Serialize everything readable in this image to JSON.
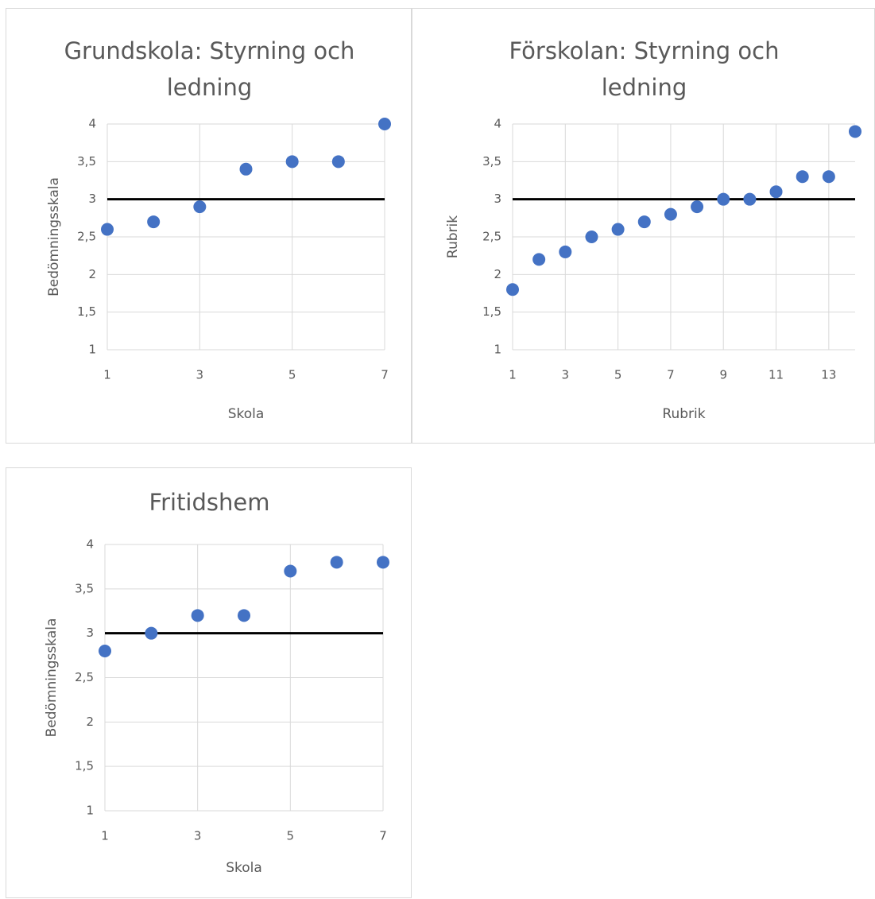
{
  "chart_data": [
    {
      "type": "scatter",
      "title_lines": [
        "Grundskola: Styrning och",
        "ledning"
      ],
      "xlabel": "Skola",
      "ylabel": "Bedömningsskala",
      "xlim": [
        1,
        7
      ],
      "ylim": [
        1,
        4
      ],
      "x_ticks": [
        "1",
        "3",
        "5",
        "7"
      ],
      "y_ticks": [
        "1",
        "1,5",
        "2",
        "2,5",
        "3",
        "3,5",
        "4"
      ],
      "reference_line_y": 3,
      "grid": true,
      "marker_color": "#4472C4",
      "reference_line_color": "#000000",
      "points": [
        {
          "x": 1,
          "y": 2.6
        },
        {
          "x": 2,
          "y": 2.7
        },
        {
          "x": 3,
          "y": 2.9
        },
        {
          "x": 4,
          "y": 3.4
        },
        {
          "x": 5,
          "y": 3.5
        },
        {
          "x": 6,
          "y": 3.5
        },
        {
          "x": 7,
          "y": 4.0
        }
      ]
    },
    {
      "type": "scatter",
      "title_lines": [
        "Förskolan: Styrning och",
        "ledning"
      ],
      "xlabel": "Rubrik",
      "ylabel": "Rubrik",
      "xlim": [
        1,
        14
      ],
      "ylim": [
        1,
        4
      ],
      "x_ticks": [
        "1",
        "3",
        "5",
        "7",
        "9",
        "11",
        "13"
      ],
      "y_ticks": [
        "1",
        "1,5",
        "2",
        "2,5",
        "3",
        "3,5",
        "4"
      ],
      "reference_line_y": 3,
      "grid": true,
      "marker_color": "#4472C4",
      "reference_line_color": "#000000",
      "points": [
        {
          "x": 1,
          "y": 1.8
        },
        {
          "x": 2,
          "y": 2.2
        },
        {
          "x": 3,
          "y": 2.3
        },
        {
          "x": 4,
          "y": 2.5
        },
        {
          "x": 5,
          "y": 2.6
        },
        {
          "x": 6,
          "y": 2.7
        },
        {
          "x": 7,
          "y": 2.8
        },
        {
          "x": 8,
          "y": 2.9
        },
        {
          "x": 9,
          "y": 3.0
        },
        {
          "x": 10,
          "y": 3.0
        },
        {
          "x": 11,
          "y": 3.1
        },
        {
          "x": 12,
          "y": 3.3
        },
        {
          "x": 13,
          "y": 3.3
        },
        {
          "x": 14,
          "y": 3.9
        }
      ]
    },
    {
      "type": "scatter",
      "title_lines": [
        "Fritidshem"
      ],
      "xlabel": "Skola",
      "ylabel": "Bedömningsskala",
      "xlim": [
        1,
        7
      ],
      "ylim": [
        1,
        4
      ],
      "x_ticks": [
        "1",
        "3",
        "5",
        "7"
      ],
      "y_ticks": [
        "1",
        "1,5",
        "2",
        "2,5",
        "3",
        "3,5",
        "4"
      ],
      "reference_line_y": 3,
      "grid": true,
      "marker_color": "#4472C4",
      "reference_line_color": "#000000",
      "points": [
        {
          "x": 1,
          "y": 2.8
        },
        {
          "x": 2,
          "y": 3.0
        },
        {
          "x": 3,
          "y": 3.2
        },
        {
          "x": 4,
          "y": 3.2
        },
        {
          "x": 5,
          "y": 3.7
        },
        {
          "x": 6,
          "y": 3.8
        },
        {
          "x": 7,
          "y": 3.8
        }
      ]
    }
  ]
}
